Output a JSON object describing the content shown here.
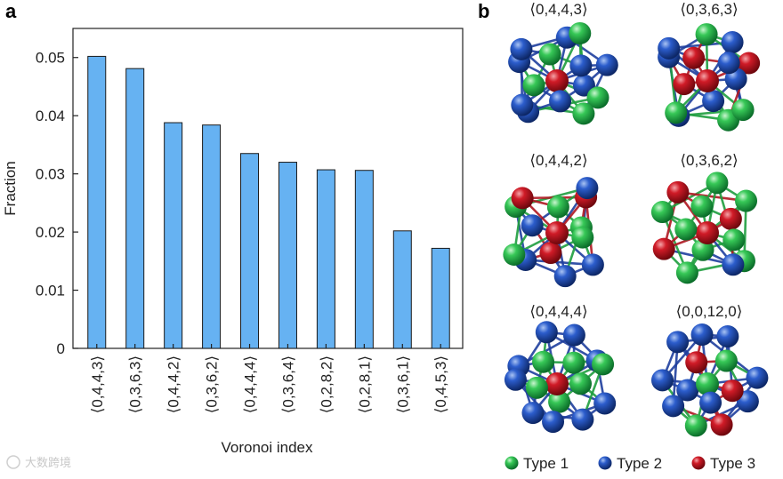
{
  "panel_a": {
    "label": "a"
  },
  "panel_b": {
    "label": "b",
    "clusters": [
      {
        "index": "⟨0,4,4,3⟩"
      },
      {
        "index": "⟨0,3,6,3⟩"
      },
      {
        "index": "⟨0,4,4,2⟩"
      },
      {
        "index": "⟨0,3,6,2⟩"
      },
      {
        "index": "⟨0,4,4,4⟩"
      },
      {
        "index": "⟨0,0,12,0⟩"
      }
    ],
    "legend": [
      {
        "label": "Type 1",
        "color": "#22b24c"
      },
      {
        "label": "Type 2",
        "color": "#1f4fb5"
      },
      {
        "label": "Type 3",
        "color": "#c0151f"
      }
    ]
  },
  "watermark": "大数跨境",
  "chart_data": {
    "type": "bar",
    "xlabel": "Voronoi index",
    "ylabel": "Fraction",
    "categories": [
      "⟨0,4,4,3⟩",
      "⟨0,3,6,3⟩",
      "⟨0,4,4,2⟩",
      "⟨0,3,6,2⟩",
      "⟨0,4,4,4⟩",
      "⟨0,3,6,4⟩",
      "⟨0,2,8,2⟩",
      "⟨0,2,8,1⟩",
      "⟨0,3,6,1⟩",
      "⟨0,4,5,3⟩"
    ],
    "values": [
      0.0502,
      0.0481,
      0.0388,
      0.0384,
      0.0335,
      0.032,
      0.0307,
      0.0306,
      0.0202,
      0.0172
    ],
    "ylim": [
      0,
      0.055
    ],
    "yticks": [
      0,
      0.01,
      0.02,
      0.03,
      0.04,
      0.05
    ],
    "ytick_labels": [
      "0",
      "0.01",
      "0.02",
      "0.03",
      "0.04",
      "0.05"
    ],
    "bar_color": "#66b2f2",
    "grid": false
  }
}
